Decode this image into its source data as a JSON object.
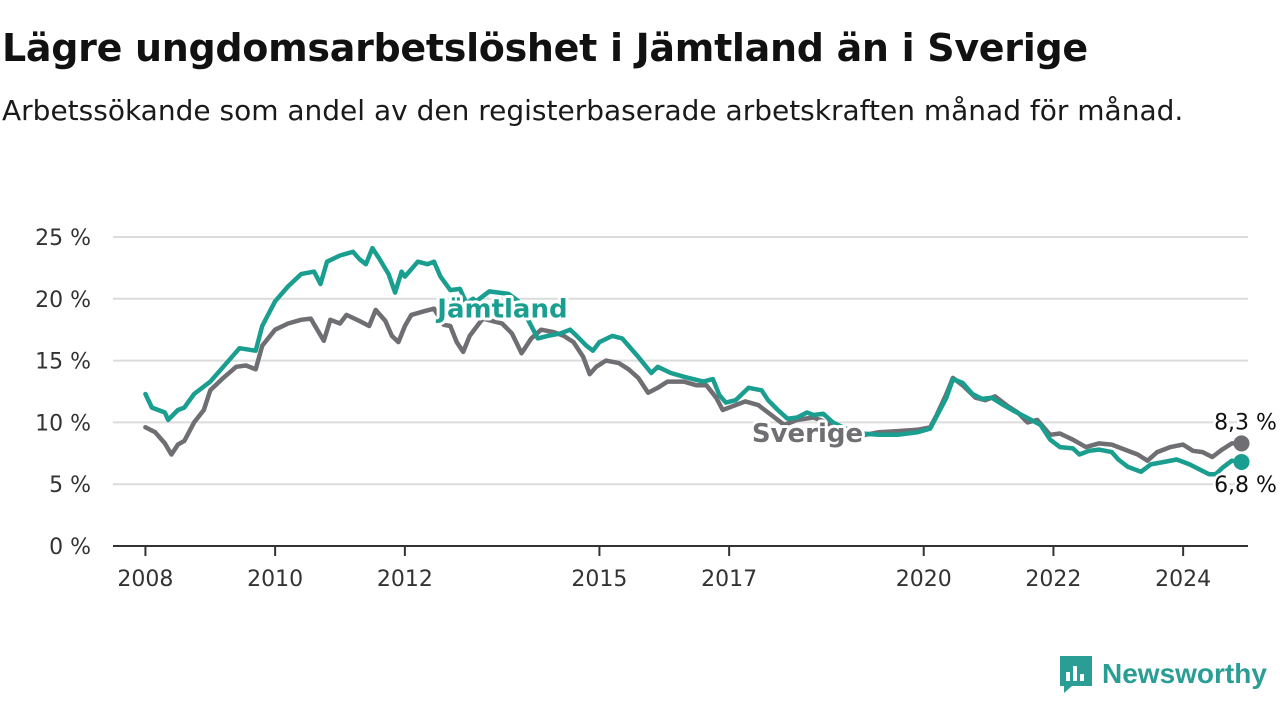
{
  "title": "Lägre ungdomsarbetslöshet i Jämtland än i Sverige",
  "subtitle": "Arbetssökande som andel av den registerbaserade arbetskraften månad för månad.",
  "brand": {
    "name": "Newsworthy",
    "icon": "newsworthy-chart-bubble-icon",
    "color": "#2a9d94"
  },
  "colors": {
    "jamtland": "#1a9e8f",
    "sverige": "#6e6e73",
    "grid": "#dcdcdc",
    "axis": "#333333"
  },
  "chart_data": {
    "type": "line",
    "title": "Lägre ungdomsarbetslöshet i Jämtland än i Sverige",
    "subtitle": "Arbetssökande som andel av den registerbaserade arbetskraften månad för månad.",
    "ylim": [
      0,
      25
    ],
    "yticks": [
      0,
      5,
      10,
      15,
      20,
      25
    ],
    "ytick_labels": [
      "0 %",
      "5 %",
      "10 %",
      "15 %",
      "20 %",
      "25 %"
    ],
    "xlim": [
      2007.5,
      2025.0
    ],
    "xticks": [
      2008,
      2010,
      2012,
      2015,
      2017,
      2020,
      2022,
      2024
    ],
    "xtick_labels": [
      "2008",
      "2010",
      "2012",
      "2015",
      "2017",
      "2020",
      "2022",
      "2024"
    ],
    "grid": "horizontal",
    "legend": "direct labels on lines",
    "series": [
      {
        "name": "Jämtland",
        "label_pos": [
          2012.5,
          18.5
        ],
        "end_label": "6,8 %",
        "points": [
          [
            2008.0,
            12.3
          ],
          [
            2008.1,
            11.2
          ],
          [
            2008.3,
            10.8
          ],
          [
            2008.35,
            10.2
          ],
          [
            2008.5,
            11.0
          ],
          [
            2008.6,
            11.2
          ],
          [
            2008.75,
            12.3
          ],
          [
            2009.0,
            13.3
          ],
          [
            2009.2,
            14.5
          ],
          [
            2009.45,
            16.0
          ],
          [
            2009.7,
            15.8
          ],
          [
            2009.8,
            17.8
          ],
          [
            2010.0,
            19.8
          ],
          [
            2010.2,
            21.0
          ],
          [
            2010.4,
            22.0
          ],
          [
            2010.6,
            22.2
          ],
          [
            2010.7,
            21.2
          ],
          [
            2010.8,
            23.0
          ],
          [
            2011.0,
            23.5
          ],
          [
            2011.2,
            23.8
          ],
          [
            2011.3,
            23.2
          ],
          [
            2011.4,
            22.8
          ],
          [
            2011.5,
            24.1
          ],
          [
            2011.6,
            23.3
          ],
          [
            2011.75,
            22.0
          ],
          [
            2011.85,
            20.5
          ],
          [
            2011.95,
            22.2
          ],
          [
            2012.0,
            21.8
          ],
          [
            2012.2,
            23.0
          ],
          [
            2012.35,
            22.8
          ],
          [
            2012.45,
            23.0
          ],
          [
            2012.55,
            21.8
          ],
          [
            2012.7,
            20.7
          ],
          [
            2012.85,
            20.8
          ],
          [
            2012.95,
            19.6
          ],
          [
            2013.05,
            20.0
          ],
          [
            2013.1,
            19.8
          ],
          [
            2013.3,
            20.6
          ],
          [
            2013.6,
            20.4
          ],
          [
            2013.75,
            19.8
          ],
          [
            2013.85,
            18.8
          ],
          [
            2014.05,
            16.8
          ],
          [
            2014.2,
            17.0
          ],
          [
            2014.4,
            17.2
          ],
          [
            2014.55,
            17.5
          ],
          [
            2014.65,
            17.0
          ],
          [
            2014.8,
            16.2
          ],
          [
            2014.9,
            15.8
          ],
          [
            2015.0,
            16.5
          ],
          [
            2015.2,
            17.0
          ],
          [
            2015.35,
            16.8
          ],
          [
            2015.6,
            15.3
          ],
          [
            2015.8,
            14.0
          ],
          [
            2015.9,
            14.5
          ],
          [
            2016.1,
            14.0
          ],
          [
            2016.3,
            13.7
          ],
          [
            2016.6,
            13.3
          ],
          [
            2016.75,
            13.5
          ],
          [
            2016.85,
            12.2
          ],
          [
            2016.95,
            11.6
          ],
          [
            2017.1,
            11.8
          ],
          [
            2017.3,
            12.8
          ],
          [
            2017.5,
            12.6
          ],
          [
            2017.6,
            11.8
          ],
          [
            2017.75,
            11.0
          ],
          [
            2017.9,
            10.3
          ],
          [
            2018.05,
            10.4
          ],
          [
            2018.2,
            10.8
          ],
          [
            2018.3,
            10.6
          ],
          [
            2018.45,
            10.7
          ],
          [
            2018.6,
            10.0
          ],
          [
            2018.75,
            9.6
          ],
          [
            2018.9,
            9.3
          ],
          [
            2019.05,
            9.1
          ],
          [
            2019.3,
            9.0
          ],
          [
            2019.6,
            9.0
          ],
          [
            2019.9,
            9.2
          ],
          [
            2020.1,
            9.5
          ],
          [
            2020.2,
            10.5
          ],
          [
            2020.35,
            12.0
          ],
          [
            2020.45,
            13.5
          ],
          [
            2020.6,
            13.2
          ],
          [
            2020.75,
            12.3
          ],
          [
            2020.9,
            11.9
          ],
          [
            2021.05,
            12.0
          ],
          [
            2021.2,
            11.5
          ],
          [
            2021.4,
            10.9
          ],
          [
            2021.55,
            10.5
          ],
          [
            2021.8,
            9.8
          ],
          [
            2021.95,
            8.6
          ],
          [
            2022.1,
            8.0
          ],
          [
            2022.3,
            7.9
          ],
          [
            2022.4,
            7.4
          ],
          [
            2022.55,
            7.7
          ],
          [
            2022.7,
            7.8
          ],
          [
            2022.9,
            7.6
          ],
          [
            2023.0,
            7.0
          ],
          [
            2023.15,
            6.4
          ],
          [
            2023.35,
            6.0
          ],
          [
            2023.5,
            6.6
          ],
          [
            2023.7,
            6.8
          ],
          [
            2023.9,
            7.0
          ],
          [
            2024.1,
            6.6
          ],
          [
            2024.25,
            6.2
          ],
          [
            2024.4,
            5.8
          ],
          [
            2024.5,
            5.8
          ],
          [
            2024.6,
            6.3
          ],
          [
            2024.75,
            6.9
          ],
          [
            2024.9,
            6.8
          ]
        ]
      },
      {
        "name": "Sverige",
        "label_pos": [
          2017.35,
          8.4
        ],
        "end_label": "8,3 %",
        "points": [
          [
            2008.0,
            9.6
          ],
          [
            2008.15,
            9.2
          ],
          [
            2008.3,
            8.3
          ],
          [
            2008.4,
            7.4
          ],
          [
            2008.5,
            8.2
          ],
          [
            2008.6,
            8.5
          ],
          [
            2008.75,
            10.0
          ],
          [
            2008.9,
            11.0
          ],
          [
            2009.0,
            12.6
          ],
          [
            2009.2,
            13.6
          ],
          [
            2009.4,
            14.5
          ],
          [
            2009.55,
            14.6
          ],
          [
            2009.7,
            14.3
          ],
          [
            2009.8,
            16.2
          ],
          [
            2010.0,
            17.5
          ],
          [
            2010.2,
            18.0
          ],
          [
            2010.4,
            18.3
          ],
          [
            2010.55,
            18.4
          ],
          [
            2010.65,
            17.5
          ],
          [
            2010.75,
            16.6
          ],
          [
            2010.85,
            18.3
          ],
          [
            2011.0,
            18.0
          ],
          [
            2011.1,
            18.7
          ],
          [
            2011.3,
            18.2
          ],
          [
            2011.45,
            17.8
          ],
          [
            2011.55,
            19.1
          ],
          [
            2011.7,
            18.2
          ],
          [
            2011.8,
            17.0
          ],
          [
            2011.9,
            16.5
          ],
          [
            2012.0,
            17.8
          ],
          [
            2012.1,
            18.7
          ],
          [
            2012.3,
            19.0
          ],
          [
            2012.45,
            19.2
          ],
          [
            2012.6,
            17.9
          ],
          [
            2012.7,
            17.8
          ],
          [
            2012.8,
            16.5
          ],
          [
            2012.9,
            15.7
          ],
          [
            2013.0,
            17.0
          ],
          [
            2013.2,
            18.4
          ],
          [
            2013.5,
            18.0
          ],
          [
            2013.65,
            17.2
          ],
          [
            2013.8,
            15.6
          ],
          [
            2013.95,
            16.8
          ],
          [
            2014.1,
            17.5
          ],
          [
            2014.3,
            17.3
          ],
          [
            2014.45,
            17.0
          ],
          [
            2014.6,
            16.5
          ],
          [
            2014.75,
            15.3
          ],
          [
            2014.85,
            13.9
          ],
          [
            2014.95,
            14.5
          ],
          [
            2015.1,
            15.0
          ],
          [
            2015.3,
            14.8
          ],
          [
            2015.45,
            14.3
          ],
          [
            2015.6,
            13.6
          ],
          [
            2015.75,
            12.4
          ],
          [
            2015.9,
            12.8
          ],
          [
            2016.05,
            13.3
          ],
          [
            2016.3,
            13.3
          ],
          [
            2016.5,
            13.0
          ],
          [
            2016.65,
            13.0
          ],
          [
            2016.8,
            12.0
          ],
          [
            2016.9,
            11.0
          ],
          [
            2017.05,
            11.3
          ],
          [
            2017.25,
            11.7
          ],
          [
            2017.45,
            11.4
          ],
          [
            2017.65,
            10.6
          ],
          [
            2017.85,
            9.8
          ],
          [
            2018.05,
            10.2
          ],
          [
            2018.3,
            10.4
          ],
          [
            2018.5,
            10.0
          ],
          [
            2018.7,
            9.3
          ],
          [
            2018.9,
            9.0
          ],
          [
            2019.1,
            9.0
          ],
          [
            2019.3,
            9.2
          ],
          [
            2019.6,
            9.3
          ],
          [
            2019.9,
            9.4
          ],
          [
            2020.1,
            9.6
          ],
          [
            2020.2,
            10.6
          ],
          [
            2020.35,
            12.3
          ],
          [
            2020.45,
            13.6
          ],
          [
            2020.6,
            13.0
          ],
          [
            2020.8,
            12.0
          ],
          [
            2020.95,
            11.8
          ],
          [
            2021.1,
            12.1
          ],
          [
            2021.3,
            11.3
          ],
          [
            2021.45,
            10.8
          ],
          [
            2021.6,
            10.0
          ],
          [
            2021.75,
            10.2
          ],
          [
            2021.95,
            9.0
          ],
          [
            2022.1,
            9.1
          ],
          [
            2022.3,
            8.6
          ],
          [
            2022.5,
            8.0
          ],
          [
            2022.7,
            8.3
          ],
          [
            2022.9,
            8.2
          ],
          [
            2023.1,
            7.8
          ],
          [
            2023.3,
            7.4
          ],
          [
            2023.45,
            6.9
          ],
          [
            2023.6,
            7.6
          ],
          [
            2023.8,
            8.0
          ],
          [
            2024.0,
            8.2
          ],
          [
            2024.15,
            7.7
          ],
          [
            2024.3,
            7.6
          ],
          [
            2024.45,
            7.2
          ],
          [
            2024.6,
            7.8
          ],
          [
            2024.75,
            8.3
          ],
          [
            2024.9,
            8.3
          ]
        ]
      }
    ]
  }
}
